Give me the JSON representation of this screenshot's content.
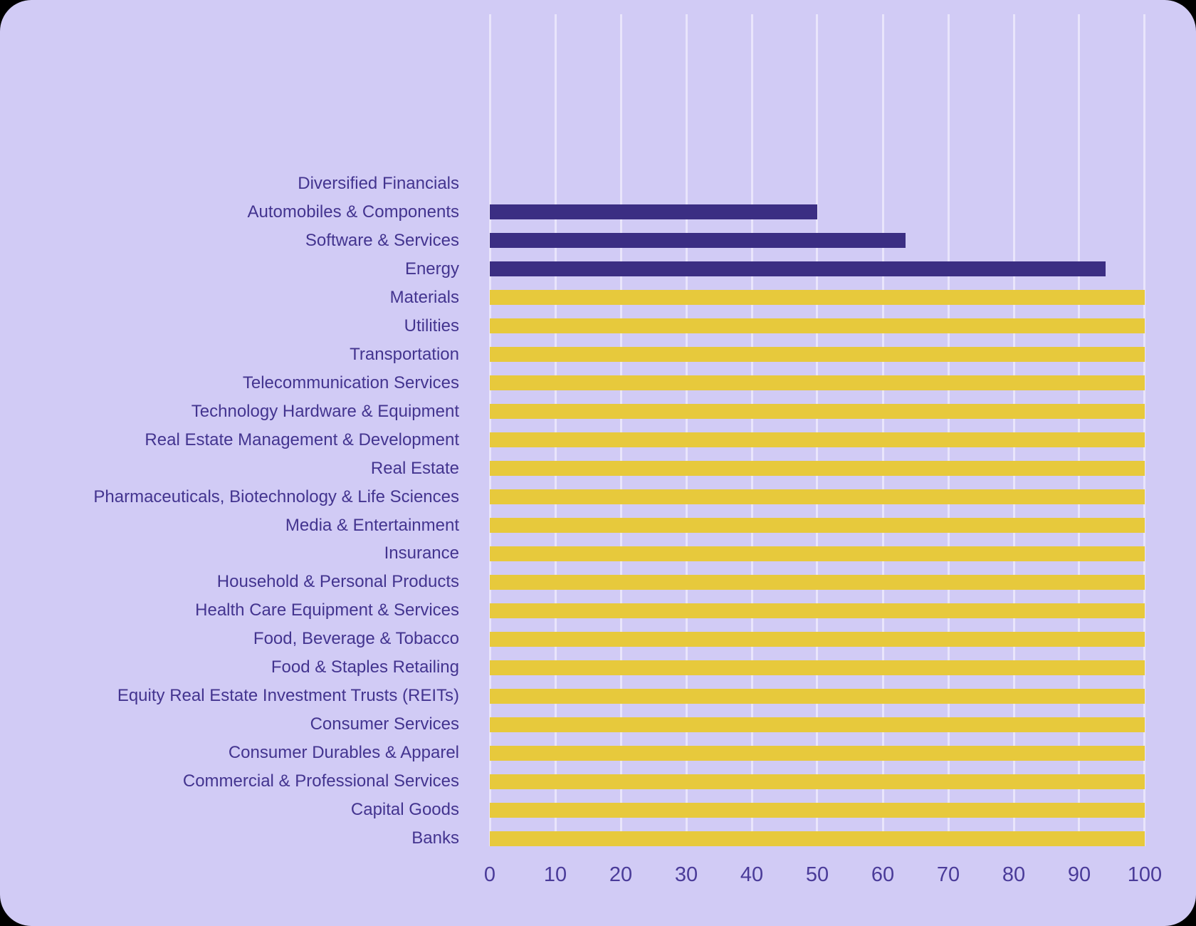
{
  "chart_data": {
    "type": "bar",
    "orientation": "horizontal",
    "title": "",
    "xlabel": "",
    "ylabel": "",
    "xlim": [
      0,
      100
    ],
    "x_ticks": [
      0,
      10,
      20,
      30,
      40,
      50,
      60,
      70,
      80,
      90,
      100
    ],
    "grid": "vertical-only",
    "legend": "none",
    "categories": [
      "Diversified Financials",
      "Automobiles & Components",
      "Software & Services",
      "Energy",
      "Materials",
      "Utilities",
      "Transportation",
      "Telecommunication Services",
      "Technology Hardware & Equipment",
      "Real Estate Management & Development",
      "Real Estate",
      "Pharmaceuticals, Biotechnology & Life Sciences",
      "Media & Entertainment",
      "Insurance",
      "Household & Personal Products",
      "Health Care Equipment & Services",
      "Food, Beverage & Tobacco",
      "Food & Staples Retailing",
      "Equity Real Estate Investment Trusts (REITs)",
      "Consumer Services",
      "Consumer Durables & Apparel",
      "Commercial & Professional Services",
      "Capital Goods",
      "Banks"
    ],
    "values": [
      0,
      50,
      63.5,
      94,
      100,
      100,
      100,
      100,
      100,
      100,
      100,
      100,
      100,
      100,
      100,
      100,
      100,
      100,
      100,
      100,
      100,
      100,
      100,
      100
    ],
    "bar_colors": [
      "#3b2e83",
      "#3b2e83",
      "#3b2e83",
      "#3b2e83",
      "#e7c93c",
      "#e7c93c",
      "#e7c93c",
      "#e7c93c",
      "#e7c93c",
      "#e7c93c",
      "#e7c93c",
      "#e7c93c",
      "#e7c93c",
      "#e7c93c",
      "#e7c93c",
      "#e7c93c",
      "#e7c93c",
      "#e7c93c",
      "#e7c93c",
      "#e7c93c",
      "#e7c93c",
      "#e7c93c",
      "#e7c93c",
      "#e7c93c"
    ],
    "colors": {
      "background": "#d1cbf5",
      "bar_highlight": "#3b2e83",
      "bar_default": "#e7c93c",
      "label_text": "#43348f",
      "tick_text": "#4a3b99",
      "gridline": "#e9e5fb"
    }
  }
}
